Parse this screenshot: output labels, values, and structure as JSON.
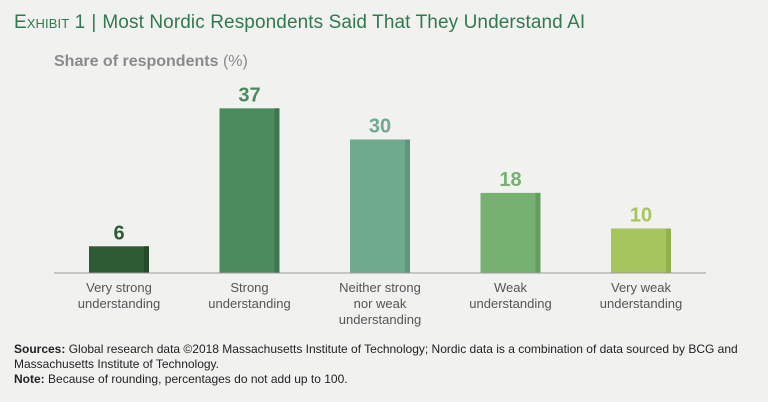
{
  "header": {
    "exhibit_label": "Exhibit 1",
    "separator": "|",
    "title": "Most Nordic Respondents Said That They Understand AI"
  },
  "chart_data": {
    "type": "bar",
    "title": "Share of respondents",
    "ylabel_unit": "(%)",
    "xlabel": "",
    "ylim": [
      0,
      40
    ],
    "grid": false,
    "legend": "none",
    "categories": [
      [
        "Very strong",
        "understanding"
      ],
      [
        "Strong",
        "understanding"
      ],
      [
        "Neither strong",
        "nor weak",
        "understanding"
      ],
      [
        "Weak",
        "understanding"
      ],
      [
        "Very weak",
        "understanding"
      ]
    ],
    "values": [
      6,
      37,
      30,
      18,
      10
    ],
    "colors": [
      "#2d5a33",
      "#4a8a5c",
      "#6fa98e",
      "#76b172",
      "#a7c55d"
    ],
    "shade_colors": [
      "#244a2a",
      "#3d764e",
      "#5d977d",
      "#649f61",
      "#93b24b"
    ],
    "label_colors": [
      "#2d5a33",
      "#4a8a5c",
      "#6fa98e",
      "#76b172",
      "#a7c55d"
    ]
  },
  "footnotes": {
    "sources_label": "Sources:",
    "sources_text": "Global research data ©2018 Massachusetts Institute of Technology; Nordic data is a combination of data sourced by BCG and Massachusetts Institute of Technology.",
    "note_label": "Note:",
    "note_text": "Because of rounding, percentages do not add up to 100."
  }
}
